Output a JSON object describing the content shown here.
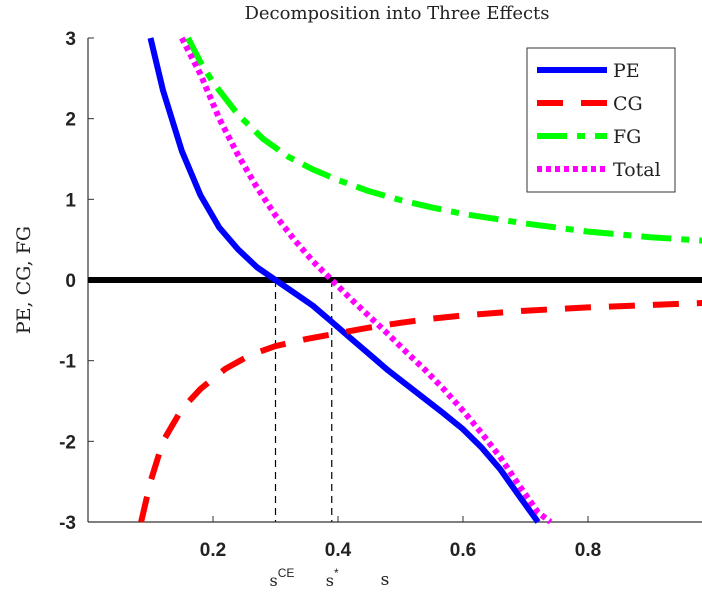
{
  "chart_data": {
    "type": "line",
    "title": "Decomposition into Three Effects",
    "xlabel": "s",
    "ylabel": "PE, CG, FG",
    "xlim": [
      0.0,
      1.0
    ],
    "ylim": [
      -3,
      3
    ],
    "xticks": [
      0.2,
      0.4,
      0.6,
      0.8
    ],
    "xtick_labels": [
      "0.2",
      "0.4",
      "0.6",
      "0.8"
    ],
    "yticks": [
      -3,
      -2,
      -1,
      0,
      1,
      2,
      3
    ],
    "ytick_labels": [
      "-3",
      "-2",
      "-1",
      "0",
      "1",
      "2",
      "3"
    ],
    "grid": false,
    "legend_position": "top-right",
    "series": [
      {
        "name": "PE",
        "color": "#0000ff",
        "style": "solid",
        "x": [
          0.1,
          0.12,
          0.15,
          0.18,
          0.21,
          0.24,
          0.27,
          0.3,
          0.33,
          0.36,
          0.39,
          0.42,
          0.45,
          0.48,
          0.51,
          0.54,
          0.57,
          0.6,
          0.63,
          0.66,
          0.69,
          0.72
        ],
        "y": [
          3.0,
          2.35,
          1.6,
          1.05,
          0.65,
          0.38,
          0.16,
          0.0,
          -0.16,
          -0.32,
          -0.52,
          -0.72,
          -0.92,
          -1.12,
          -1.3,
          -1.48,
          -1.66,
          -1.85,
          -2.08,
          -2.35,
          -2.68,
          -3.0
        ]
      },
      {
        "name": "CG",
        "color": "#ff0000",
        "style": "dashed",
        "x": [
          0.085,
          0.1,
          0.12,
          0.15,
          0.18,
          0.22,
          0.26,
          0.3,
          0.35,
          0.4,
          0.45,
          0.5,
          0.55,
          0.6,
          0.7,
          0.8,
          0.9,
          1.0
        ],
        "y": [
          -3.0,
          -2.5,
          -2.0,
          -1.6,
          -1.35,
          -1.1,
          -0.93,
          -0.82,
          -0.73,
          -0.66,
          -0.59,
          -0.53,
          -0.48,
          -0.44,
          -0.38,
          -0.34,
          -0.31,
          -0.28
        ]
      },
      {
        "name": "FG",
        "color": "#00ff00",
        "style": "dashdot",
        "x": [
          0.16,
          0.18,
          0.2,
          0.24,
          0.28,
          0.32,
          0.36,
          0.4,
          0.45,
          0.5,
          0.55,
          0.6,
          0.7,
          0.8,
          0.9,
          1.0
        ],
        "y": [
          3.0,
          2.7,
          2.45,
          2.05,
          1.75,
          1.53,
          1.37,
          1.24,
          1.1,
          0.99,
          0.9,
          0.82,
          0.7,
          0.6,
          0.53,
          0.48
        ]
      },
      {
        "name": "Total",
        "color": "#ff00ff",
        "style": "dotted",
        "x": [
          0.15,
          0.18,
          0.21,
          0.24,
          0.27,
          0.3,
          0.33,
          0.36,
          0.39,
          0.42,
          0.45,
          0.48,
          0.51,
          0.54,
          0.57,
          0.6,
          0.63,
          0.66,
          0.69,
          0.72,
          0.74
        ],
        "y": [
          3.0,
          2.55,
          2.0,
          1.55,
          1.15,
          0.8,
          0.5,
          0.23,
          0.0,
          -0.23,
          -0.45,
          -0.67,
          -0.9,
          -1.12,
          -1.36,
          -1.62,
          -1.9,
          -2.2,
          -2.55,
          -2.88,
          -3.0
        ]
      }
    ],
    "reference_lines": [
      {
        "label": "s",
        "superscript": "CE",
        "x": 0.3,
        "y": 0
      },
      {
        "label": "s",
        "superscript": "*",
        "x": 0.39,
        "y": 0
      }
    ]
  }
}
